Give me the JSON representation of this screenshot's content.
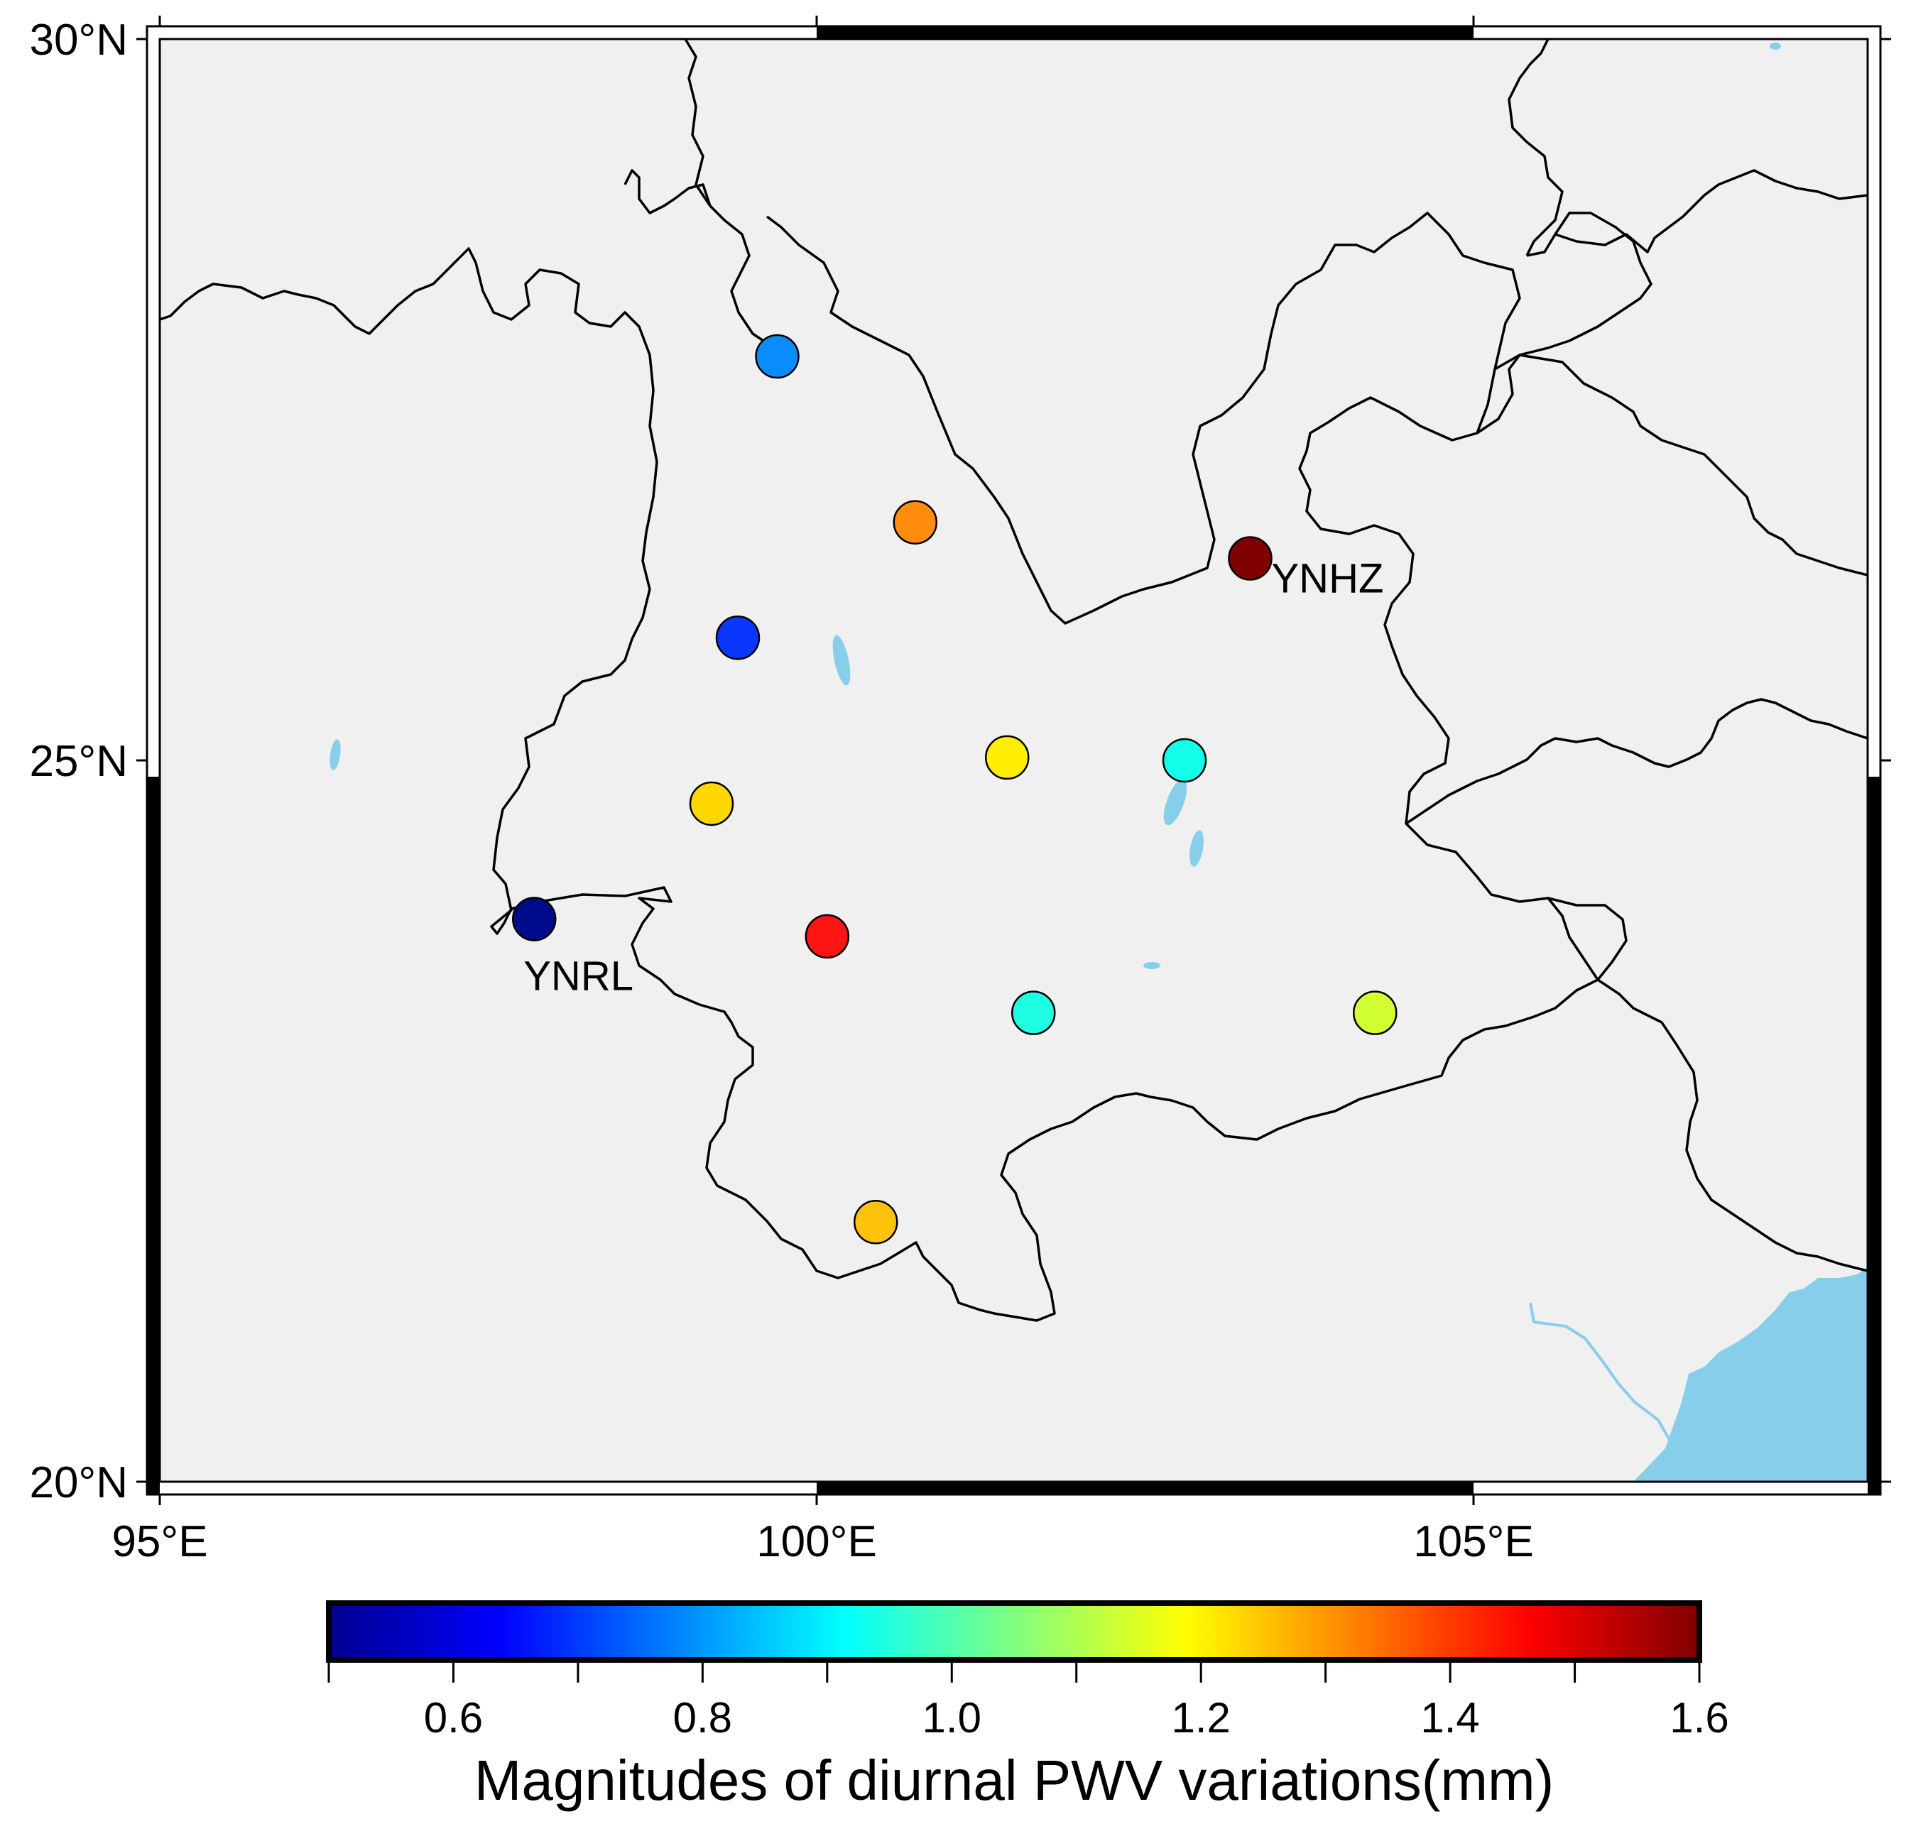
{
  "map": {
    "land_color": "#f0f0f0",
    "water_color": "#87ceeb",
    "lon_range": [
      95,
      108
    ],
    "lat_range": [
      20,
      30
    ],
    "lon_ticks": [
      {
        "value": 95,
        "label": "95°E"
      },
      {
        "value": 100,
        "label": "100°E"
      },
      {
        "value": 105,
        "label": "105°E"
      }
    ],
    "lat_ticks": [
      {
        "value": 30,
        "label": "30°N"
      },
      {
        "value": 25,
        "label": "25°N"
      },
      {
        "value": 20,
        "label": "20°N"
      }
    ]
  },
  "stations": [
    {
      "lon": 99.7,
      "lat": 27.8,
      "color": "#0a8cff"
    },
    {
      "lon": 100.75,
      "lat": 26.65,
      "color": "#ff8c0a"
    },
    {
      "lon": 103.3,
      "lat": 26.4,
      "color": "#800000",
      "label": "YNHZ"
    },
    {
      "lon": 99.4,
      "lat": 25.85,
      "color": "#0a37ff"
    },
    {
      "lon": 101.45,
      "lat": 25.02,
      "color": "#ffee00"
    },
    {
      "lon": 102.8,
      "lat": 25.0,
      "color": "#14ffea"
    },
    {
      "lon": 99.2,
      "lat": 24.7,
      "color": "#ffd700"
    },
    {
      "lon": 97.85,
      "lat": 23.9,
      "color": "#000b8c",
      "label": "YNRL"
    },
    {
      "lon": 100.08,
      "lat": 23.78,
      "color": "#ff1414"
    },
    {
      "lon": 101.65,
      "lat": 23.25,
      "color": "#1effe4"
    },
    {
      "lon": 104.25,
      "lat": 23.25,
      "color": "#d2ff32"
    },
    {
      "lon": 100.45,
      "lat": 21.8,
      "color": "#ffc20a"
    }
  ],
  "colorbar": {
    "min": 0.5,
    "max": 1.6,
    "stops": [
      "#00008f",
      "#0000ff",
      "#0080ff",
      "#00ffff",
      "#80ff80",
      "#ffff00",
      "#ff8000",
      "#ff0000",
      "#800000"
    ],
    "tick_labels": [
      {
        "value": 0.6,
        "label": "0.6"
      },
      {
        "value": 0.8,
        "label": "0.8"
      },
      {
        "value": 1.0,
        "label": "1.0"
      },
      {
        "value": 1.2,
        "label": "1.2"
      },
      {
        "value": 1.4,
        "label": "1.4"
      },
      {
        "value": 1.6,
        "label": "1.6"
      }
    ],
    "title": "Magnitudes of diurnal PWV variations(mm)"
  }
}
